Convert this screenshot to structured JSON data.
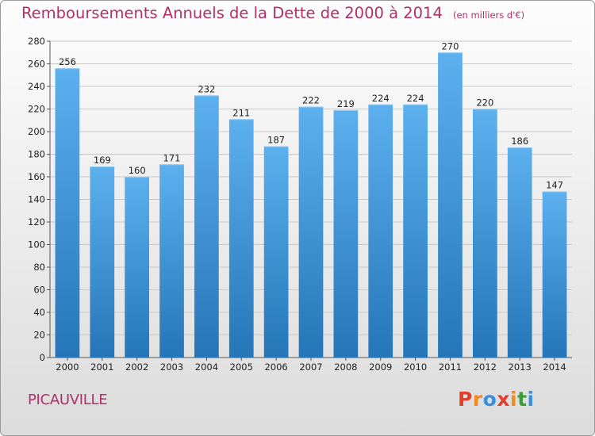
{
  "header": {
    "title": "Remboursements Annuels de la Dette de 2000 à 2014",
    "unit": "(en milliers d'€)"
  },
  "footer": {
    "town": "PICAUVILLE",
    "logo": "Proxiti"
  },
  "colors": {
    "title": "#b0306a",
    "bar_top": "#5db0ee",
    "bar_bottom": "#2476b8",
    "logo": [
      "#e0402a",
      "#f08a1c",
      "#3a8fdc",
      "#e0402a",
      "#f08a1c",
      "#3a9f3a",
      "#3a8fdc"
    ]
  },
  "chart_data": {
    "type": "bar",
    "title": "Remboursements Annuels de la Dette de 2000 à 2014",
    "categories": [
      "2000",
      "2001",
      "2002",
      "2003",
      "2004",
      "2005",
      "2006",
      "2007",
      "2008",
      "2009",
      "2010",
      "2011",
      "2012",
      "2013",
      "2014"
    ],
    "values": [
      256,
      169,
      160,
      171,
      232,
      211,
      187,
      222,
      219,
      224,
      224,
      270,
      220,
      186,
      147
    ],
    "ylim": [
      0,
      280
    ],
    "yticks": [
      0,
      20,
      40,
      60,
      80,
      100,
      120,
      140,
      160,
      180,
      200,
      220,
      240,
      260,
      280
    ],
    "grid": true,
    "data_labels": true
  }
}
